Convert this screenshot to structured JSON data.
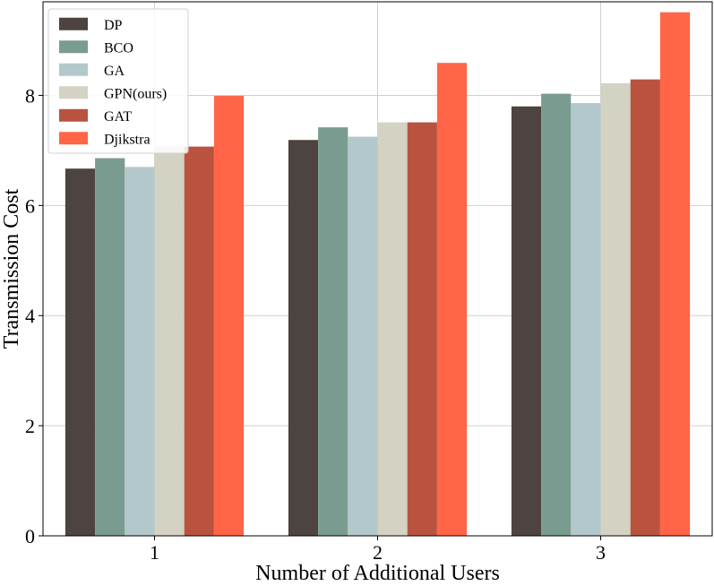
{
  "chart_data": {
    "type": "bar",
    "title": "",
    "xlabel": "Number of Additional Users",
    "ylabel": "Transmission Cost",
    "categories": [
      "1",
      "2",
      "3"
    ],
    "ylim": [
      0,
      9.7
    ],
    "yticks": [
      0,
      2,
      4,
      6,
      8
    ],
    "grid": true,
    "legend_position": "top-left",
    "series": [
      {
        "name": "DP",
        "color": "#4d4340",
        "values": [
          6.67,
          7.19,
          7.8
        ]
      },
      {
        "name": "BCO",
        "color": "#7a9c90",
        "values": [
          6.86,
          7.42,
          8.03
        ]
      },
      {
        "name": "GA",
        "color": "#b3c8cb",
        "values": [
          6.7,
          7.25,
          7.86
        ]
      },
      {
        "name": "GPN(ours)",
        "color": "#d4d2c2",
        "values": [
          7.07,
          7.51,
          8.22
        ]
      },
      {
        "name": "GAT",
        "color": "#b95340",
        "values": [
          7.07,
          7.51,
          8.29
        ]
      },
      {
        "name": "Djikstra",
        "color": "#ff6546",
        "values": [
          7.99,
          8.59,
          9.51
        ]
      }
    ]
  }
}
